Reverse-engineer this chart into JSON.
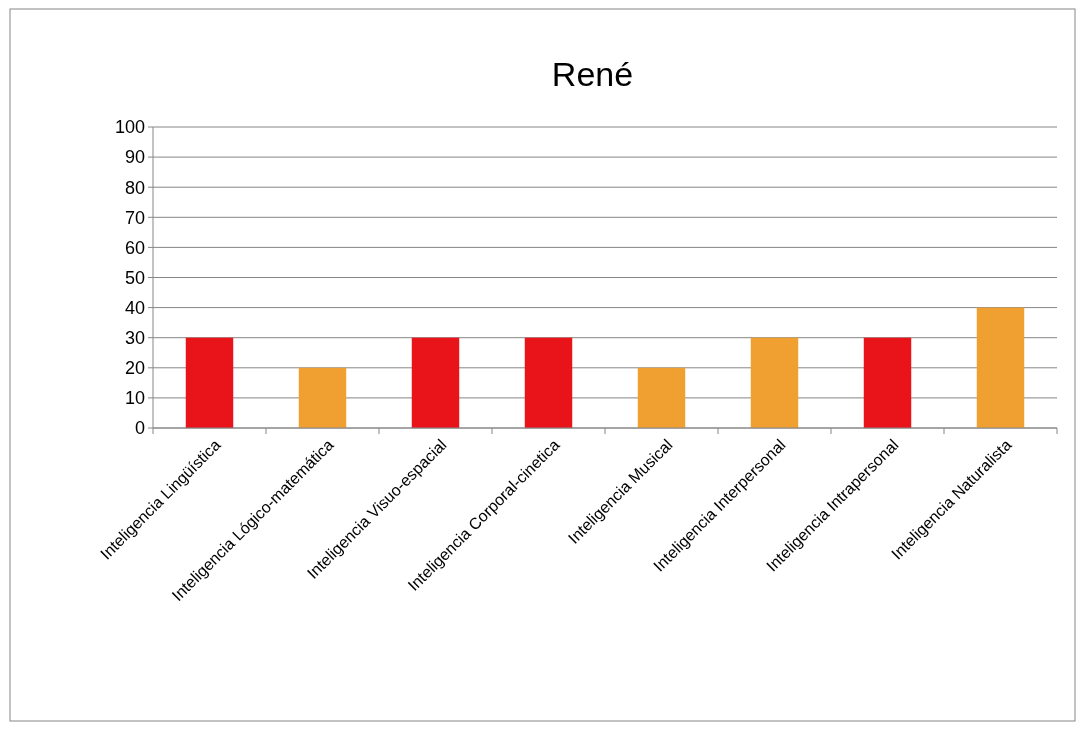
{
  "chart_data": {
    "type": "bar",
    "title": "René",
    "categories": [
      "Inteligencia Lingüística",
      "Inteligencia Lógico-matemática",
      "Inteligencia Visuo-espacial",
      "Inteligencia Corporal-cinetica",
      "Inteligencia Musical",
      "Inteligencia Interpersonal",
      "Inteligencia Intrapersonal",
      "Inteligencia Naturalista"
    ],
    "values": [
      30,
      20,
      30,
      30,
      20,
      30,
      30,
      40
    ],
    "colors": [
      "#e8141a",
      "#f0a030",
      "#e8141a",
      "#e8141a",
      "#f0a030",
      "#f0a030",
      "#e8141a",
      "#f0a030"
    ],
    "ylim": [
      0,
      100
    ],
    "yticks": [
      0,
      10,
      20,
      30,
      40,
      50,
      60,
      70,
      80,
      90,
      100
    ],
    "grid": "y"
  }
}
